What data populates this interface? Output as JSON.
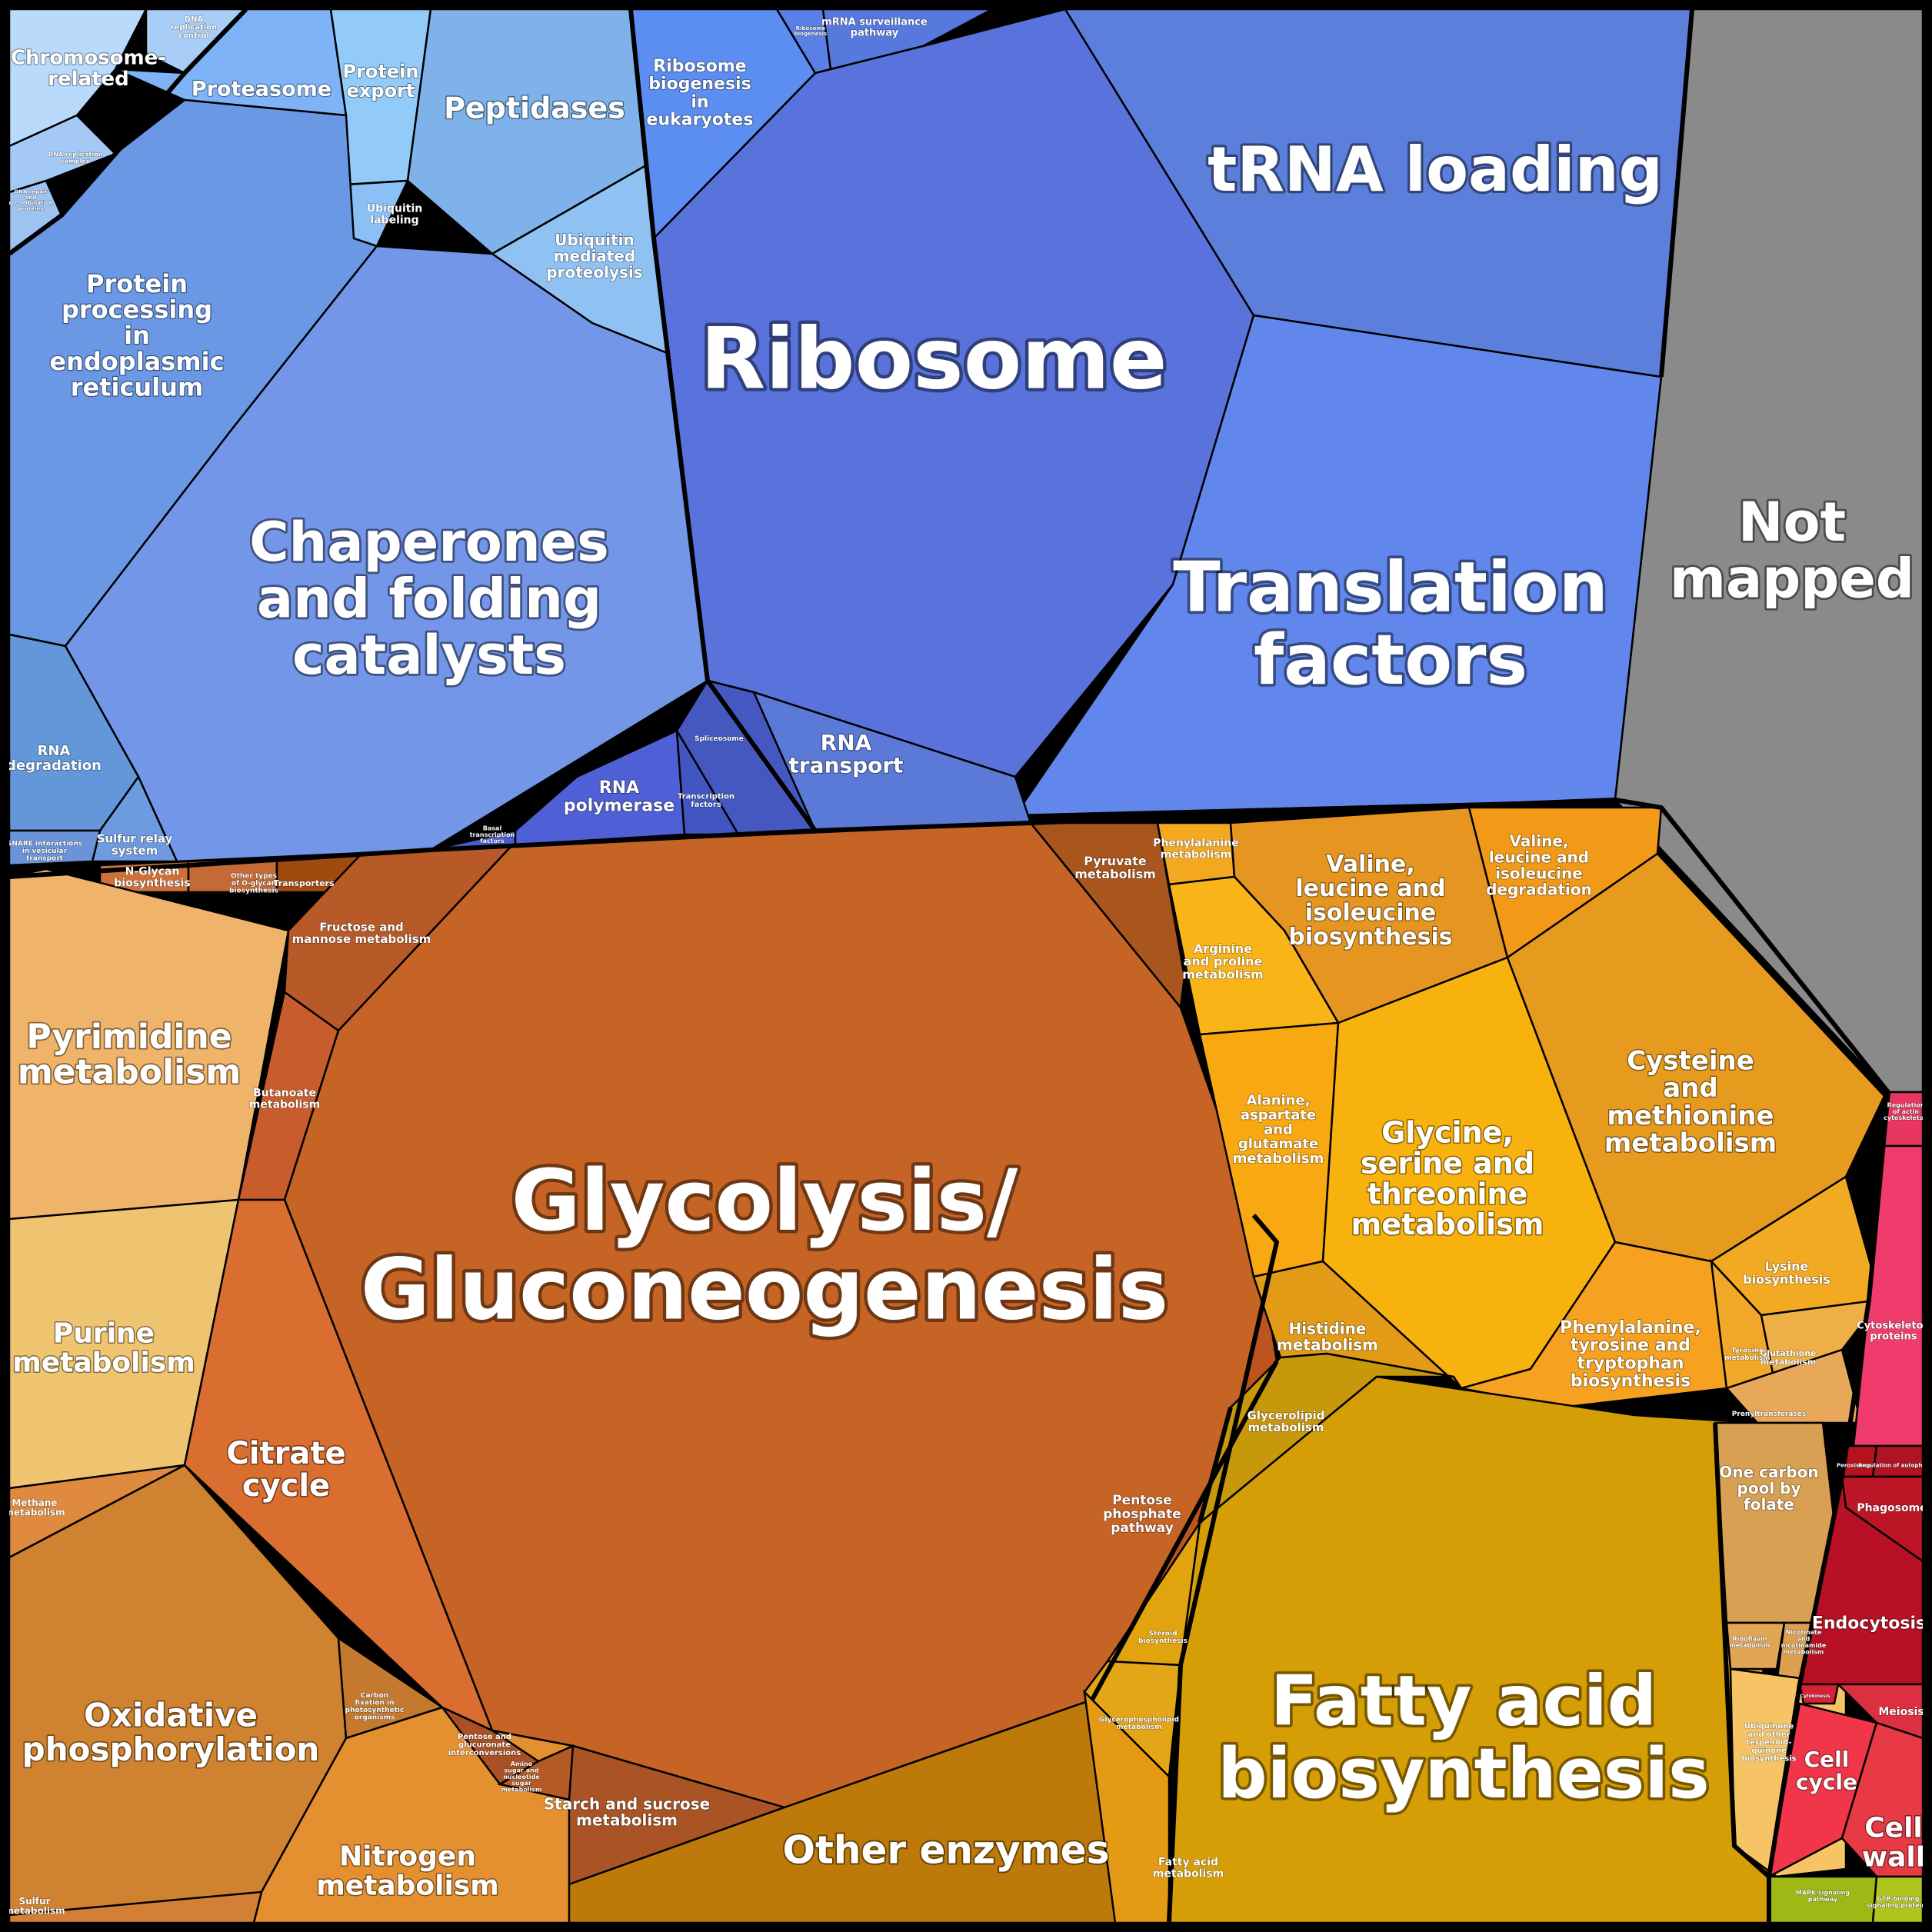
{
  "title": "Proteomaps / KEGG functional category Voronoi treemap",
  "colors": {
    "background": "#000000",
    "genetic_info": "#5C7CE0",
    "metabolism": "#C96A28",
    "amino_acid": "#F0A020",
    "lipid": "#D29E08",
    "cellular": "#E0304A",
    "not_mapped": "#8A8A8A"
  },
  "cells": [
    {
      "id": "chromosome-related",
      "label": "Chromosome-\nrelated",
      "color": "#B9DAFB"
    },
    {
      "id": "dna-replication-control",
      "label": "DNA\nreplication\ncontrol",
      "color": "#A8CDF6"
    },
    {
      "id": "dna-replication-complex",
      "label": "DNA replication\ncomplex",
      "color": "#A5C9F5"
    },
    {
      "id": "dna-repair",
      "label": "DNA repair\nand\nrecombination\nproteins",
      "color": "#9EC2F2"
    },
    {
      "id": "proteasome",
      "label": "Proteasome",
      "color": "#7EB3F7"
    },
    {
      "id": "protein-export",
      "label": "Protein\nexport",
      "color": "#93CBF8"
    },
    {
      "id": "peptidases",
      "label": "Peptidases",
      "color": "#7FB2EB"
    },
    {
      "id": "ubiquitin-labeling",
      "label": "Ubiquitin\nlabeling",
      "color": "#8AC0F5"
    },
    {
      "id": "ubiquitin-proteolysis",
      "label": "Ubiquitin\nmediated\nproteolysis",
      "color": "#8FC2F3"
    },
    {
      "id": "protein-processing-er",
      "label": "Protein\nprocessing\nin\nendoplasmic\nreticulum",
      "color": "#6A98E5"
    },
    {
      "id": "chaperones",
      "label": "Chaperones\nand folding\ncatalysts",
      "color": "#7396E8"
    },
    {
      "id": "rna-degradation",
      "label": "RNA\ndegradation",
      "color": "#6497D9"
    },
    {
      "id": "sulfur-relay",
      "label": "Sulfur relay\nsystem",
      "color": "#6E9BE0"
    },
    {
      "id": "snare",
      "label": "SNARE interactions\nin vesicular\ntransport",
      "color": "#6A93DA"
    },
    {
      "id": "ribosome-biogenesis-euk",
      "label": "Ribosome\nbiogenesis\nin\neukaryotes",
      "color": "#5C8DF0"
    },
    {
      "id": "ribosome-biogenesis",
      "label": "Ribosome\nbiogenesis",
      "color": "#5A80E8"
    },
    {
      "id": "mrna-surveillance",
      "label": "mRNA surveillance\npathway",
      "color": "#5778DC"
    },
    {
      "id": "ribosome",
      "label": "Ribosome",
      "color": "#5A73DC"
    },
    {
      "id": "trna-loading",
      "label": "tRNA loading",
      "color": "#5B7FDA"
    },
    {
      "id": "translation-factors",
      "label": "Translation\nfactors",
      "color": "#6287EC"
    },
    {
      "id": "rna-transport",
      "label": "RNA\ntransport",
      "color": "#5B7AD8"
    },
    {
      "id": "rna-polymerase",
      "label": "RNA\npolymerase",
      "color": "#4F5FD6"
    },
    {
      "id": "spliceosome",
      "label": "Spliceosome",
      "color": "#4558C0"
    },
    {
      "id": "transcription-factors",
      "label": "Transcription\nfactors",
      "color": "#4156C2"
    },
    {
      "id": "basal-tf",
      "label": "Basal\ntranscription\nfactors",
      "color": "#4A5BCC"
    },
    {
      "id": "not-mapped",
      "label": "Not\nmapped",
      "color": "#8A8A8A"
    },
    {
      "id": "n-glycan",
      "label": "N-Glycan\nbiosynthesis",
      "color": "#D07038"
    },
    {
      "id": "other-o-glycan",
      "label": "Other types\nof O-glycan\nbiosynthesis",
      "color": "#C46A34"
    },
    {
      "id": "transporters",
      "label": "Transporters",
      "color": "#A04A10"
    },
    {
      "id": "pyrimidine",
      "label": "Pyrimidine\nmetabolism",
      "color": "#EFB46A"
    },
    {
      "id": "purine",
      "label": "Purine\nmetabolism",
      "color": "#EEC470"
    },
    {
      "id": "fructose-mannose",
      "label": "Fructose and\nmannose metabolism",
      "color": "#B75A28"
    },
    {
      "id": "butanoate",
      "label": "Butanoate\nmetabolism",
      "color": "#C85C2C"
    },
    {
      "id": "glycolysis",
      "label": "Glycolysis/\nGluconeogenesis",
      "color": "#C66426"
    },
    {
      "id": "pyruvate",
      "label": "Pyruvate\nmetabolism",
      "color": "#A8561E"
    },
    {
      "id": "citrate-cycle",
      "label": "Citrate\ncycle",
      "color": "#DA6E30"
    },
    {
      "id": "methane",
      "label": "Methane\nmetabolism",
      "color": "#E08A40"
    },
    {
      "id": "oxphos",
      "label": "Oxidative\nphosphorylation",
      "color": "#CF8230"
    },
    {
      "id": "carbon-fixation",
      "label": "Carbon\nfixation in\nphotosynthetic\norganisms",
      "color": "#C47A2E"
    },
    {
      "id": "nitrogen",
      "label": "Nitrogen\nmetabolism",
      "color": "#E49030"
    },
    {
      "id": "sulfur-metabolism",
      "label": "Sulfur\nmetabolism",
      "color": "#D38036"
    },
    {
      "id": "pentose-glucuronate",
      "label": "Pentose and\nglucuronate\ninterconversions",
      "color": "#A95024"
    },
    {
      "id": "amino-nucleotide-sugar",
      "label": "Amino\nsugar and\nnucleotide\nsugar\nmetabolism",
      "color": "#B45A26"
    },
    {
      "id": "starch-sucrose",
      "label": "Starch and sucrose\nmetabolism",
      "color": "#AA5426"
    },
    {
      "id": "pentose-phosphate",
      "label": "Pentose\nphosphate\npathway",
      "color": "#BC5420"
    },
    {
      "id": "other-enzymes",
      "label": "Other enzymes",
      "color": "#BD7A0A"
    },
    {
      "id": "phenylalanine-metabolism",
      "label": "Phenylalanine\nmetabolism",
      "color": "#F4A820"
    },
    {
      "id": "valine-biosynthesis",
      "label": "Valine,\nleucine and\nisoleucine\nbiosynthesis",
      "color": "#E59520"
    },
    {
      "id": "valine-degradation",
      "label": "Valine,\nleucine and\nisoleucine\ndegradation",
      "color": "#F29A18"
    },
    {
      "id": "arginine-proline",
      "label": "Arginine\nand proline\nmetabolism",
      "color": "#F9B418"
    },
    {
      "id": "alanine-aspartate",
      "label": "Alanine,\naspartate\nand\nglutamate\nmetabolism",
      "color": "#F8A810"
    },
    {
      "id": "glycine-serine",
      "label": "Glycine,\nserine and\nthreonine\nmetabolism",
      "color": "#F8B20E"
    },
    {
      "id": "cysteine-methionine",
      "label": "Cysteine\nand\nmethionine\nmetabolism",
      "color": "#E69A1E"
    },
    {
      "id": "lysine",
      "label": "Lysine\nbiosynthesis",
      "color": "#F2AA22"
    },
    {
      "id": "histidine",
      "label": "Histidine\nmetabolism",
      "color": "#E39A16"
    },
    {
      "id": "phe-tyr-trp",
      "label": "Phenylalanine,\ntyrosine and\ntryptophan\nbiosynthesis",
      "color": "#F6A220"
    },
    {
      "id": "tyrosine",
      "label": "Tyrosine\nmetabolism",
      "color": "#F1A828"
    },
    {
      "id": "glutathione",
      "label": "Glutathione\nmetabolism",
      "color": "#EEB046"
    },
    {
      "id": "prenyltransferases",
      "label": "Prenyltransferases",
      "color": "#E7A85A"
    },
    {
      "id": "glycerolipid",
      "label": "Glycerolipid\nmetabolism",
      "color": "#C8980C"
    },
    {
      "id": "fatty-acid-biosynthesis",
      "label": "Fatty acid\nbiosynthesis",
      "color": "#D59E06"
    },
    {
      "id": "steroid",
      "label": "Steroid\nbiosynthesis",
      "color": "#E2A40E"
    },
    {
      "id": "glycerophospholipid",
      "label": "Glycerophospholipid\nmetabolism",
      "color": "#E4A616"
    },
    {
      "id": "fatty-acid-metabolism",
      "label": "Fatty acid\nmetabolism",
      "color": "#E49A14"
    },
    {
      "id": "one-carbon",
      "label": "One carbon\npool by\nfolate",
      "color": "#D8A052"
    },
    {
      "id": "riboflavin",
      "label": "Riboflavin\nmetabolism",
      "color": "#E0A654"
    },
    {
      "id": "nicotinate",
      "label": "Nicotinate\nand\nnicotinamide\nmetabolism",
      "color": "#DCA04E"
    },
    {
      "id": "ubiquinone",
      "label": "Ubiquinone\nand other\nterpenoid-\nquinone\nbiosynthesis",
      "color": "#F6C464"
    },
    {
      "id": "regulation-actin",
      "label": "Regulation\nof actin\ncytoskeleton",
      "color": "#E83660"
    },
    {
      "id": "cytoskeleton",
      "label": "Cytoskeleton\nproteins",
      "color": "#F03C6C"
    },
    {
      "id": "peroxisome",
      "label": "Peroxisome",
      "color": "#B5121E"
    },
    {
      "id": "regulation-autophagy",
      "label": "Regulation of autophagy",
      "color": "#B01424"
    },
    {
      "id": "phagosome",
      "label": "Phagosome",
      "color": "#BC1626"
    },
    {
      "id": "endocytosis",
      "label": "Endocytosis",
      "color": "#B81024"
    },
    {
      "id": "cytokinesis",
      "label": "Cytokinesis",
      "color": "#D82036"
    },
    {
      "id": "meiosis",
      "label": "Meiosis",
      "color": "#DC3042"
    },
    {
      "id": "cell-cycle",
      "label": "Cell\ncycle",
      "color": "#F03648"
    },
    {
      "id": "cell-wall",
      "label": "Cell\nwall",
      "color": "#E83A44"
    },
    {
      "id": "mapk",
      "label": "MAPK signaling\npathway",
      "color": "#9EB816"
    },
    {
      "id": "gtp-signaling",
      "label": "GTP-binding\nsignaling proteins",
      "color": "#B0C41E"
    }
  ]
}
